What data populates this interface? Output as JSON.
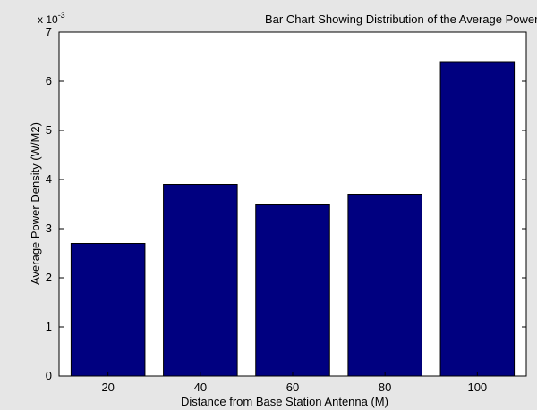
{
  "chart_data": {
    "type": "bar",
    "title": "Bar Chart Showing Distribution of the Average Power Density",
    "xlabel": "Distance from Base Station Antenna (M)",
    "ylabel": "Average Power Density (W/M2)",
    "y_multiplier_base": "x 10",
    "y_multiplier_exponent": "-3",
    "categories": [
      "20",
      "40",
      "60",
      "80",
      "100"
    ],
    "values": [
      2.7,
      3.9,
      3.5,
      3.7,
      6.4
    ],
    "ylim": [
      0,
      7
    ],
    "yticks": [
      "0",
      "1",
      "2",
      "3",
      "4",
      "5",
      "6",
      "7"
    ],
    "bar_color": "#000080",
    "figure_background": "#e6e6e6",
    "plot_background": "#ffffff",
    "grid": false,
    "legend": "none"
  }
}
